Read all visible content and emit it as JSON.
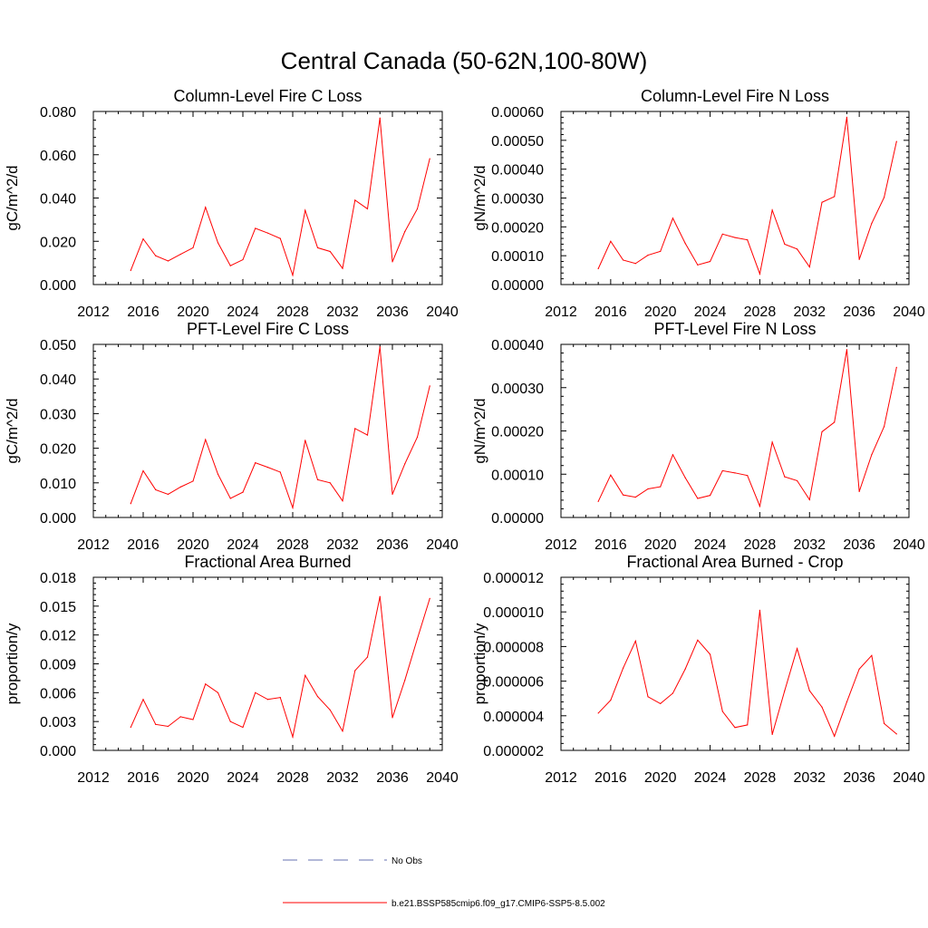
{
  "figure": {
    "title": "Central Canada (50-62N,100-80W)",
    "legend": [
      {
        "label": "No Obs",
        "color": "#6670b0",
        "dash": "dashed"
      },
      {
        "label": "b.e21.BSSP585cmip6.f09_g17.CMIP6-SSP5-8.5.002",
        "color": "#ff0000",
        "dash": "solid"
      }
    ]
  },
  "chart_data": [
    {
      "type": "line",
      "title": "Column-Level Fire C Loss",
      "xlabel": "",
      "ylabel": "gC/m^2/d",
      "xlim": [
        2012,
        2040
      ],
      "ylim": [
        0,
        0.08
      ],
      "xticks": [
        "2012",
        "2016",
        "2020",
        "2024",
        "2028",
        "2032",
        "2036",
        "2040"
      ],
      "yticks": [
        "0.000",
        "0.020",
        "0.040",
        "0.060",
        "0.080"
      ],
      "x": [
        2015,
        2016,
        2017,
        2018,
        2019,
        2020,
        2021,
        2022,
        2023,
        2024,
        2025,
        2026,
        2027,
        2028,
        2029,
        2030,
        2031,
        2032,
        2033,
        2034,
        2035,
        2036,
        2037,
        2038,
        2039
      ],
      "series": [
        {
          "values": [
            0.0065,
            0.0211,
            0.0133,
            0.0109,
            0.014,
            0.017,
            0.0357,
            0.0193,
            0.0087,
            0.0115,
            0.026,
            0.0238,
            0.0213,
            0.0043,
            0.0343,
            0.017,
            0.0153,
            0.0075,
            0.039,
            0.035,
            0.077,
            0.0105,
            0.0245,
            0.035,
            0.0582
          ],
          "color": "#ff0000"
        }
      ]
    },
    {
      "type": "line",
      "title": "Column-Level Fire N Loss",
      "xlabel": "",
      "ylabel": "gN/m^2/d",
      "xlim": [
        2012,
        2040
      ],
      "ylim": [
        0,
        0.0006
      ],
      "xticks": [
        "2012",
        "2016",
        "2020",
        "2024",
        "2028",
        "2032",
        "2036",
        "2040"
      ],
      "yticks": [
        "0.00000",
        "0.00010",
        "0.00020",
        "0.00030",
        "0.00040",
        "0.00050",
        "0.00060"
      ],
      "x": [
        2015,
        2016,
        2017,
        2018,
        2019,
        2020,
        2021,
        2022,
        2023,
        2024,
        2025,
        2026,
        2027,
        2028,
        2029,
        2030,
        2031,
        2032,
        2033,
        2034,
        2035,
        2036,
        2037,
        2038,
        2039
      ],
      "series": [
        {
          "values": [
            5.5e-05,
            0.00015,
            8.5e-05,
            7.3e-05,
            0.000102,
            0.000115,
            0.00023,
            0.000143,
            6.8e-05,
            8e-05,
            0.000175,
            0.000163,
            0.000155,
            3.7e-05,
            0.000258,
            0.00014,
            0.000123,
            6.1e-05,
            0.000285,
            0.000305,
            0.00058,
            8.7e-05,
            0.000212,
            0.000302,
            0.000496
          ],
          "color": "#ff0000"
        }
      ]
    },
    {
      "type": "line",
      "title": "PFT-Level Fire C Loss",
      "xlabel": "",
      "ylabel": "gC/m^2/d",
      "xlim": [
        2012,
        2040
      ],
      "ylim": [
        0,
        0.05
      ],
      "xticks": [
        "2012",
        "2016",
        "2020",
        "2024",
        "2028",
        "2032",
        "2036",
        "2040"
      ],
      "yticks": [
        "0.000",
        "0.010",
        "0.020",
        "0.030",
        "0.040",
        "0.050"
      ],
      "x": [
        2015,
        2016,
        2017,
        2018,
        2019,
        2020,
        2021,
        2022,
        2023,
        2024,
        2025,
        2026,
        2027,
        2028,
        2029,
        2030,
        2031,
        2032,
        2033,
        2034,
        2035,
        2036,
        2037,
        2038,
        2039
      ],
      "series": [
        {
          "values": [
            0.004,
            0.0135,
            0.008,
            0.0067,
            0.0088,
            0.0105,
            0.0225,
            0.0125,
            0.0055,
            0.0073,
            0.0158,
            0.0145,
            0.0131,
            0.0028,
            0.0223,
            0.0109,
            0.01,
            0.0048,
            0.0257,
            0.0238,
            0.0493,
            0.0067,
            0.0155,
            0.0232,
            0.038
          ],
          "color": "#ff0000"
        }
      ]
    },
    {
      "type": "line",
      "title": "PFT-Level Fire N Loss",
      "xlabel": "",
      "ylabel": "gN/m^2/d",
      "xlim": [
        2012,
        2040
      ],
      "ylim": [
        0,
        0.0004
      ],
      "xticks": [
        "2012",
        "2016",
        "2020",
        "2024",
        "2028",
        "2032",
        "2036",
        "2040"
      ],
      "yticks": [
        "0.00000",
        "0.00010",
        "0.00020",
        "0.00030",
        "0.00040"
      ],
      "x": [
        2015,
        2016,
        2017,
        2018,
        2019,
        2020,
        2021,
        2022,
        2023,
        2024,
        2025,
        2026,
        2027,
        2028,
        2029,
        2030,
        2031,
        2032,
        2033,
        2034,
        2035,
        2036,
        2037,
        2038,
        2039
      ],
      "series": [
        {
          "values": [
            3.7e-05,
            9.8e-05,
            5.2e-05,
            4.7e-05,
            6.6e-05,
            7.1e-05,
            0.000145,
            9.2e-05,
            4.4e-05,
            5.1e-05,
            0.000108,
            0.000103,
            9.7e-05,
            2.6e-05,
            0.000174,
            9.4e-05,
            8.5e-05,
            4.1e-05,
            0.000198,
            0.00022,
            0.000388,
            6e-05,
            0.000145,
            0.00021,
            0.000347
          ],
          "color": "#ff0000"
        }
      ]
    },
    {
      "type": "line",
      "title": "Fractional Area Burned",
      "xlabel": "",
      "ylabel": "proportion/y",
      "xlim": [
        2012,
        2040
      ],
      "ylim": [
        0,
        0.018
      ],
      "xticks": [
        "2012",
        "2016",
        "2020",
        "2024",
        "2028",
        "2032",
        "2036",
        "2040"
      ],
      "yticks": [
        "0.000",
        "0.003",
        "0.006",
        "0.009",
        "0.012",
        "0.015",
        "0.018"
      ],
      "x": [
        2015,
        2016,
        2017,
        2018,
        2019,
        2020,
        2021,
        2022,
        2023,
        2024,
        2025,
        2026,
        2027,
        2028,
        2029,
        2030,
        2031,
        2032,
        2033,
        2034,
        2035,
        2036,
        2037,
        2038,
        2039
      ],
      "series": [
        {
          "values": [
            0.0024,
            0.0053,
            0.0027,
            0.0025,
            0.0035,
            0.0032,
            0.0069,
            0.006,
            0.003,
            0.0024,
            0.006,
            0.0053,
            0.0055,
            0.0014,
            0.0078,
            0.0056,
            0.0042,
            0.002,
            0.0083,
            0.0097,
            0.016,
            0.0034,
            0.0073,
            0.0116,
            0.0158
          ],
          "color": "#ff0000"
        }
      ]
    },
    {
      "type": "line",
      "title": "Fractional Area Burned - Crop",
      "xlabel": "",
      "ylabel": "proportion/y",
      "xlim": [
        2012,
        2040
      ],
      "ylim": [
        2e-06,
        1.2e-05
      ],
      "xticks": [
        "2012",
        "2016",
        "2020",
        "2024",
        "2028",
        "2032",
        "2036",
        "2040"
      ],
      "yticks": [
        "0.000002",
        "0.000004",
        "0.000006",
        "0.000008",
        "0.000010",
        "0.000012"
      ],
      "x": [
        2015,
        2016,
        2017,
        2018,
        2019,
        2020,
        2021,
        2022,
        2023,
        2024,
        2025,
        2026,
        2027,
        2028,
        2029,
        2030,
        2031,
        2032,
        2033,
        2034,
        2035,
        2036,
        2037,
        2038,
        2039
      ],
      "series": [
        {
          "values": [
            4.15e-06,
            4.9e-06,
            6.75e-06,
            8.32e-06,
            5.1e-06,
            4.7e-06,
            5.3e-06,
            6.7e-06,
            8.37e-06,
            7.55e-06,
            4.25e-06,
            3.32e-06,
            3.47e-06,
            1.01e-05,
            2.92e-06,
            5.45e-06,
            7.88e-06,
            5.45e-06,
            4.5e-06,
            2.82e-06,
            4.8e-06,
            6.7e-06,
            7.48e-06,
            3.55e-06,
            2.95e-06
          ],
          "color": "#ff0000"
        }
      ]
    }
  ]
}
